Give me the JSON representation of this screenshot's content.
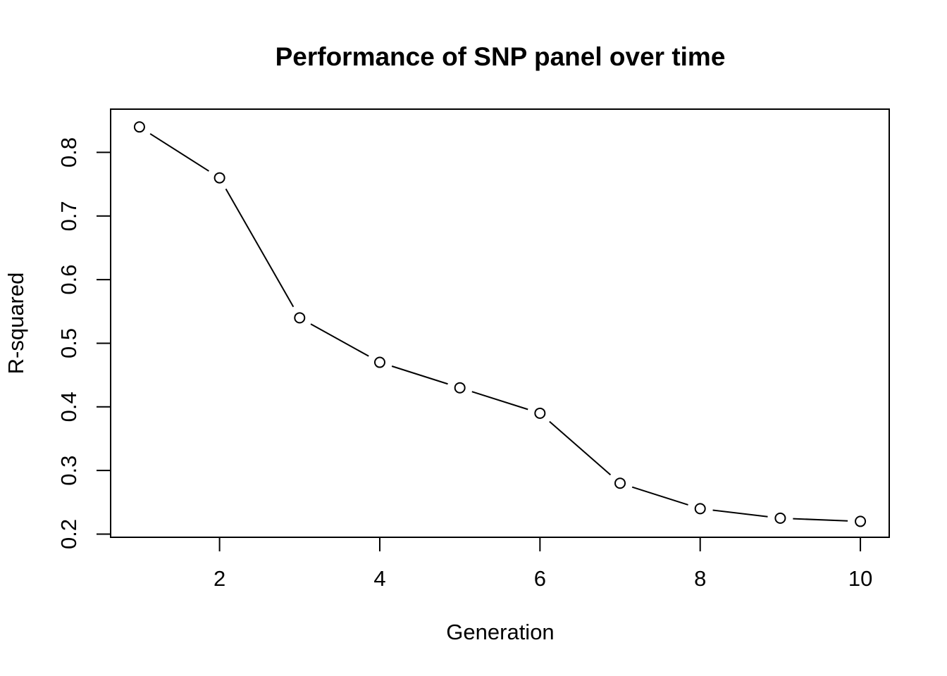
{
  "figure": {
    "background": "#ffffff",
    "foreground": "#000000"
  },
  "chart_data": {
    "type": "line",
    "title": "Performance of SNP panel over time",
    "xlabel": "Generation",
    "ylabel": "R-squared",
    "series": [
      {
        "name": "R-squared",
        "x": [
          1,
          2,
          3,
          4,
          5,
          6,
          7,
          8,
          9,
          10
        ],
        "y": [
          0.84,
          0.76,
          0.54,
          0.47,
          0.43,
          0.39,
          0.28,
          0.24,
          0.225,
          0.22
        ]
      }
    ],
    "xticks": [
      "2",
      "4",
      "6",
      "8",
      "10"
    ],
    "yticks": [
      "0.2",
      "0.3",
      "0.4",
      "0.5",
      "0.6",
      "0.7",
      "0.8"
    ],
    "xlim": [
      0.64,
      10.36
    ],
    "ylim": [
      0.195,
      0.868
    ],
    "grid": false,
    "legend": null,
    "marker": "open-circle",
    "line_style": "points-and-segments",
    "line_color": "#000000",
    "marker_fill": "#ffffff"
  }
}
